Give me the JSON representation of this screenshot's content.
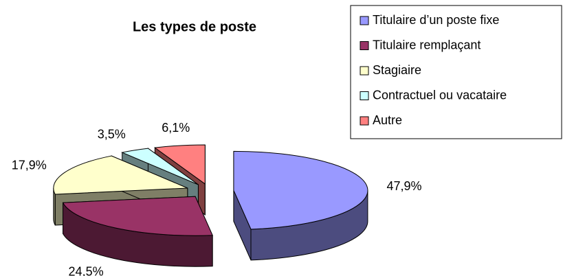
{
  "chart_data": {
    "type": "pie",
    "title": "Les types de poste",
    "categories": [
      "Titulaire d’un poste fixe",
      "Titulaire remplaçant",
      "Stagiaire",
      "Contractuel ou vacataire",
      "Autre"
    ],
    "values": [
      47.9,
      24.5,
      17.9,
      3.5,
      6.1
    ],
    "value_labels": [
      "47,9%",
      "24,5%",
      "17,9%",
      "3,5%",
      "6,1%"
    ],
    "colors": [
      "#9999ff",
      "#993366",
      "#ffffcc",
      "#ccffff",
      "#ff8080"
    ]
  }
}
